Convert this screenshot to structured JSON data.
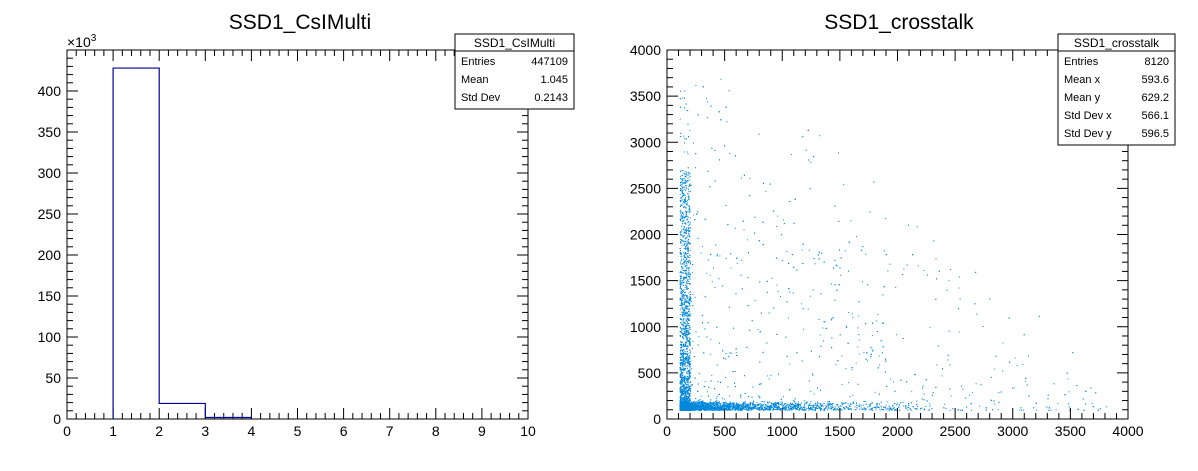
{
  "chart_data": [
    {
      "type": "bar",
      "title": "SSD1_CsIMulti",
      "xlabel": "",
      "ylabel": "",
      "xlim": [
        0,
        10
      ],
      "ylim": [
        0,
        450000
      ],
      "y_exponent_label": "×10",
      "y_exponent_value": "3",
      "x_ticks": [
        "0",
        "1",
        "2",
        "3",
        "4",
        "5",
        "6",
        "7",
        "8",
        "9",
        "10"
      ],
      "y_ticks": [
        "0",
        "50",
        "100",
        "150",
        "200",
        "250",
        "300",
        "350",
        "400"
      ],
      "bins": [
        {
          "low": 1,
          "high": 2,
          "value": 428000
        },
        {
          "low": 2,
          "high": 3,
          "value": 19000
        },
        {
          "low": 3,
          "high": 4,
          "value": 1800
        }
      ],
      "line_color": "#000099",
      "grid": false,
      "stats": {
        "name": "SSD1_CsIMulti",
        "rows": [
          {
            "label": "Entries",
            "value": "447109"
          },
          {
            "label": "Mean",
            "value": "1.045"
          },
          {
            "label": "Std Dev",
            "value": "0.2143"
          }
        ]
      }
    },
    {
      "type": "scatter",
      "title": "SSD1_crosstalk",
      "xlabel": "",
      "ylabel": "",
      "xlim": [
        0,
        4000
      ],
      "ylim": [
        0,
        4000
      ],
      "x_ticks": [
        "0",
        "500",
        "1000",
        "1500",
        "2000",
        "2500",
        "3000",
        "3500",
        "4000"
      ],
      "y_ticks": [
        "0",
        "500",
        "1000",
        "1500",
        "2000",
        "2500",
        "3000",
        "3500",
        "4000"
      ],
      "marker_color": "#0088dd",
      "grid": false,
      "entries": 8120,
      "stats": {
        "name": "SSD1_crosstalk",
        "rows": [
          {
            "label": "Entries",
            "value": "8120"
          },
          {
            "label": "Mean x",
            "value": "593.6"
          },
          {
            "label": "Mean y",
            "value": "629.2"
          },
          {
            "label": "Std Dev x",
            "value": "566.1"
          },
          {
            "label": "Std Dev y",
            "value": "596.5"
          }
        ]
      }
    }
  ]
}
